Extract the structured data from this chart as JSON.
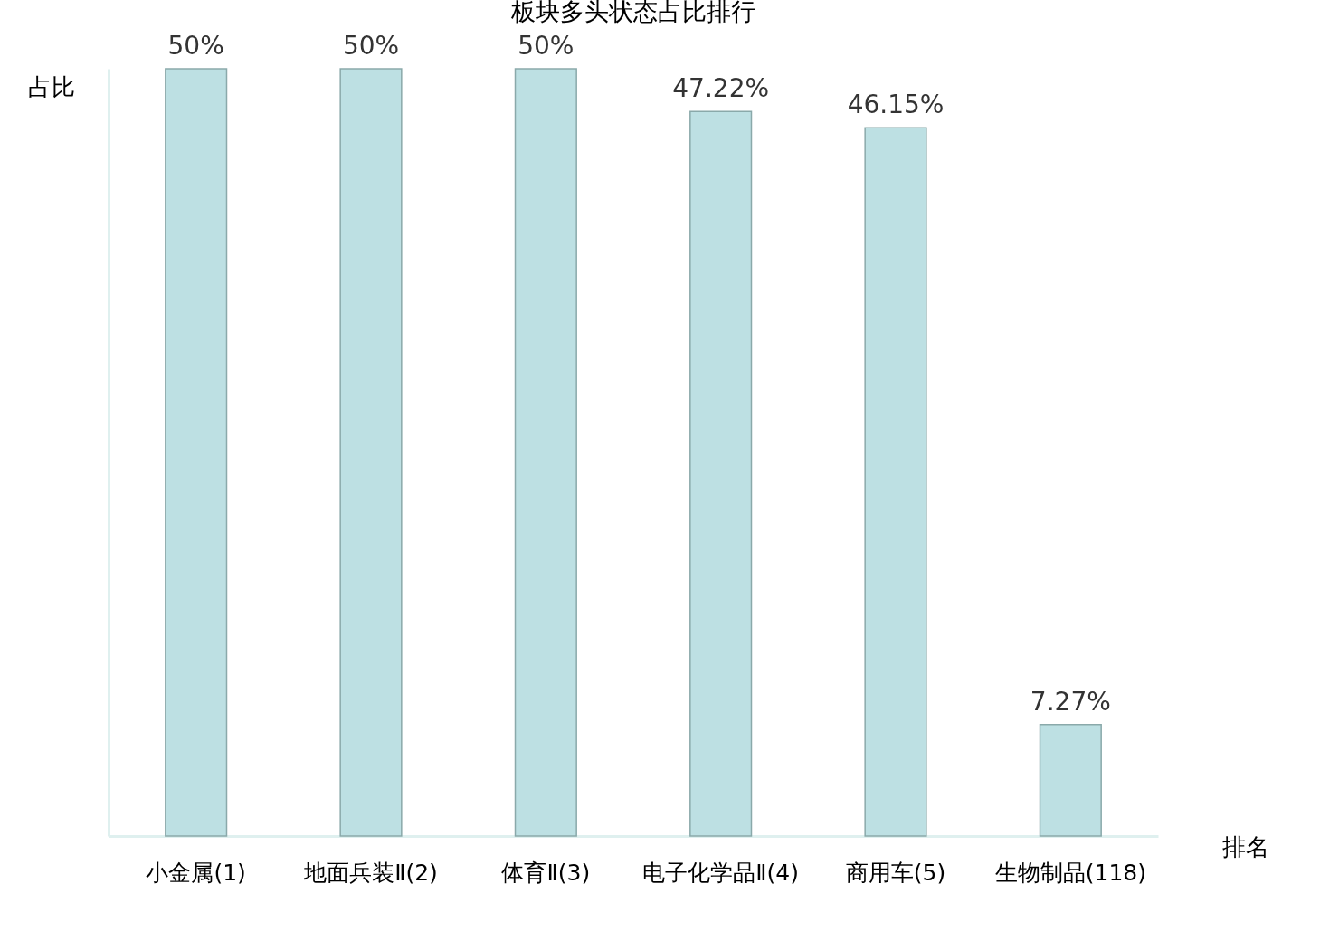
{
  "chart_data": {
    "type": "bar",
    "title": "板块多头状态占比排行",
    "xlabel": "排名",
    "ylabel": "占比",
    "categories": [
      "小金属(1)",
      "地面兵装Ⅱ(2)",
      "体育Ⅱ(3)",
      "电子化学品Ⅱ(4)",
      "商用车(5)",
      "生物制品(118)"
    ],
    "values": [
      50,
      50,
      50,
      47.22,
      46.15,
      7.27
    ],
    "value_labels": [
      "50%",
      "50%",
      "50%",
      "47.22%",
      "46.15%",
      "7.27%"
    ],
    "color": "#bde0e3",
    "grid": false
  }
}
